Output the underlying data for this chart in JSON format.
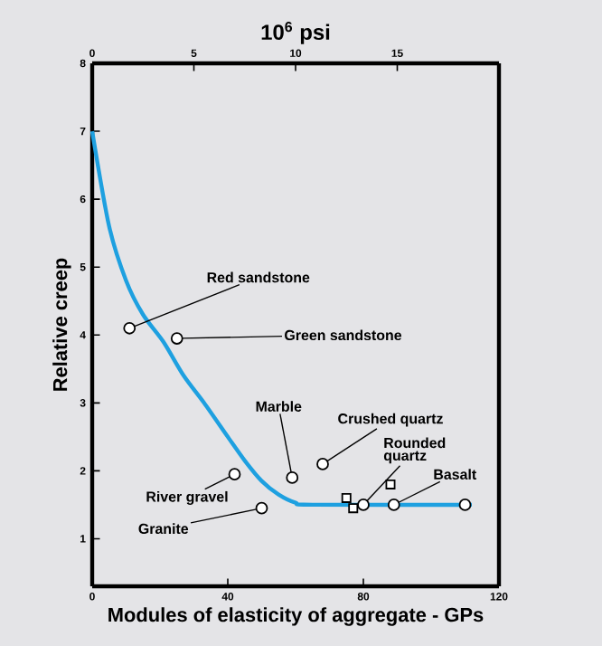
{
  "chart_data": {
    "type": "scatter",
    "xlabel": "Modules of elasticity of aggregate - GPs",
    "ylabel": "Relative creep",
    "x2label": "10$^{6}$ psi",
    "xlim": [
      0,
      120
    ],
    "xticks": [
      0,
      40,
      80,
      120
    ],
    "ylim": [
      0.3,
      8
    ],
    "yticks": [
      1,
      2,
      3,
      4,
      5,
      6,
      7,
      8
    ],
    "x2lim": [
      0,
      20
    ],
    "x2ticks": [
      0,
      5,
      10,
      15
    ],
    "series": [
      {
        "type": "line",
        "color": "#1ea0e0",
        "x": [
          0,
          5,
          10,
          15,
          21,
          27,
          33,
          40,
          45,
          50,
          55,
          60,
          65,
          112
        ],
        "values": [
          7,
          5.6,
          4.8,
          4.3,
          3.9,
          3.4,
          3.0,
          2.5,
          2.15,
          1.85,
          1.65,
          1.53,
          1.5,
          1.5
        ]
      },
      {
        "marker": "circle",
        "color": "#000000",
        "x": [
          11,
          25,
          42,
          50,
          59,
          68,
          80,
          89,
          110
        ],
        "values": [
          4.1,
          3.95,
          1.95,
          1.45,
          1.9,
          2.1,
          1.5,
          1.5,
          1.5
        ]
      },
      {
        "marker": "square",
        "color": "#000000",
        "x": [
          75,
          77,
          88
        ],
        "values": [
          1.6,
          1.45,
          1.8
        ]
      }
    ],
    "annotations": [
      {
        "text": "Red sandstone",
        "x": 11,
        "y": 4.1
      },
      {
        "text": "Green sandstone",
        "x": 25,
        "y": 3.95
      },
      {
        "text": "Marble",
        "x": 59,
        "y": 1.9
      },
      {
        "text": "Crushed quartz",
        "x": 68,
        "y": 2.1
      },
      {
        "text": "Rounded quartz",
        "x": 80,
        "y": 1.5
      },
      {
        "text": "Basalt",
        "x": 89,
        "y": 1.5
      },
      {
        "text": "River gravel",
        "x": 42,
        "y": 1.95
      },
      {
        "text": "Granite",
        "x": 50,
        "y": 1.45
      }
    ]
  }
}
